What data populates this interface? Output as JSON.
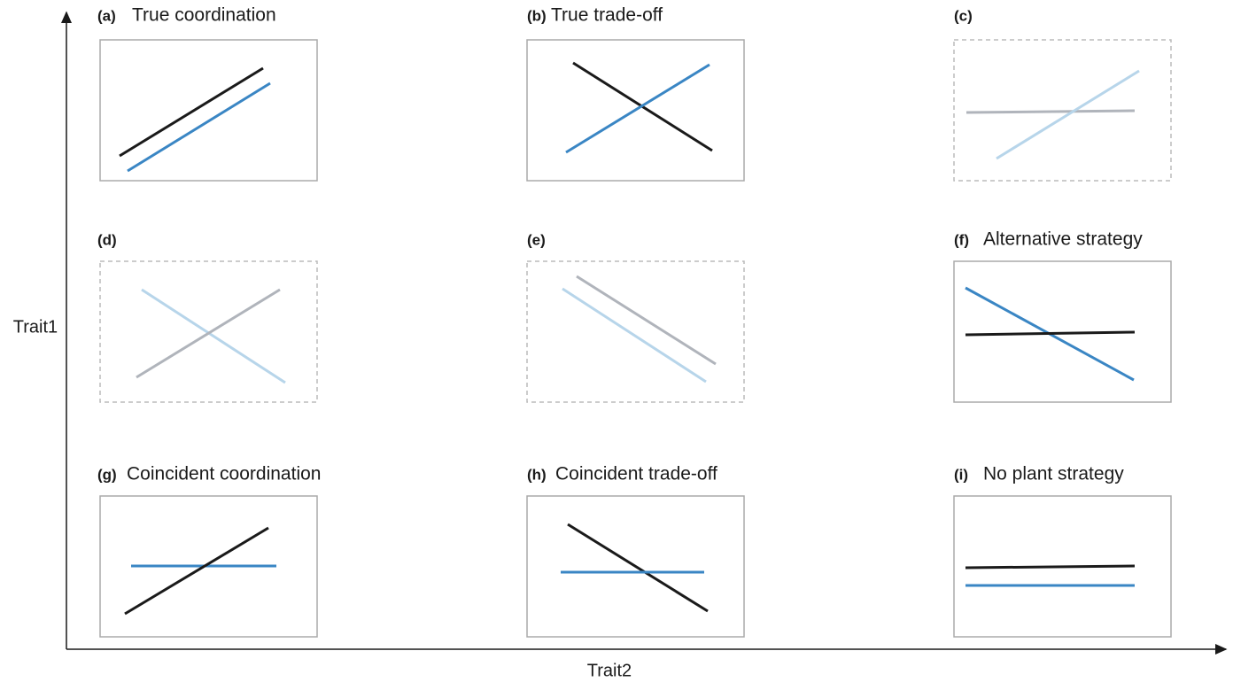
{
  "axes": {
    "y_label": "Trait1",
    "x_label": "Trait2"
  },
  "panels": [
    {
      "label": "(a)",
      "title": "True coordination"
    },
    {
      "label": "(b)",
      "title": "True trade-off"
    },
    {
      "label": "(c)"
    },
    {
      "label": "(d)"
    },
    {
      "label": "(e)"
    },
    {
      "label": "(f)",
      "title": "Alternative strategy"
    },
    {
      "label": "(g)",
      "title": "Coincident coordination"
    },
    {
      "label": "(h)",
      "title": "Coincident trade-off"
    },
    {
      "label": "(i)",
      "title": "No plant strategy"
    }
  ]
}
